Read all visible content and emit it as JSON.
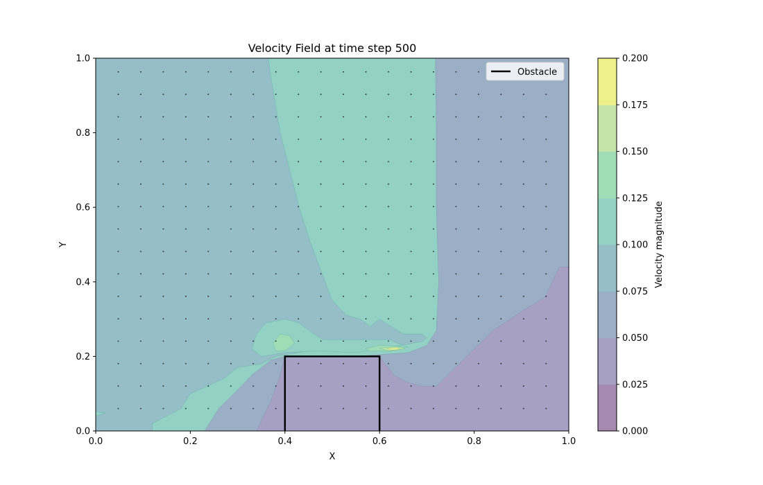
{
  "chart_data": {
    "type": "heatmap",
    "title": "Velocity Field at time step 500",
    "xlabel": "X",
    "ylabel": "Y",
    "xlim": [
      0,
      1
    ],
    "ylim": [
      0,
      1
    ],
    "xticks": [
      "0.0",
      "0.2",
      "0.4",
      "0.6",
      "0.8",
      "1.0"
    ],
    "yticks": [
      "0.0",
      "0.2",
      "0.4",
      "0.6",
      "0.8",
      "1.0"
    ],
    "colorbar": {
      "label": "Velocity magnitude",
      "ticks": [
        "0.000",
        "0.025",
        "0.050",
        "0.075",
        "0.100",
        "0.125",
        "0.150",
        "0.175",
        "0.200"
      ],
      "levels": [
        0.0,
        0.025,
        0.05,
        0.075,
        0.1,
        0.125,
        0.15,
        0.175,
        0.2
      ],
      "colors": [
        "#a689b1",
        "#a5a0c4",
        "#9aafc6",
        "#95bec8",
        "#92d1c4",
        "#a0dcb6",
        "#c3e5a8",
        "#eef08a"
      ]
    },
    "legend": {
      "location": "top-right",
      "entries": [
        {
          "label": "Obstacle",
          "color": "#000000"
        }
      ]
    },
    "obstacle": {
      "x": [
        0.4,
        0.6
      ],
      "y": [
        0.0,
        0.2
      ]
    },
    "regions": [
      {
        "level": 0.075,
        "points": [
          [
            0,
            0
          ],
          [
            0.12,
            0
          ],
          [
            0.12,
            0.02
          ],
          [
            0.18,
            0.06
          ],
          [
            0.2,
            0.1
          ],
          [
            0.27,
            0.14
          ],
          [
            0.3,
            0.17
          ],
          [
            0.35,
            0.18
          ],
          [
            0.38,
            0.2
          ],
          [
            0.45,
            0.215
          ],
          [
            0.55,
            0.218
          ],
          [
            0.63,
            0.226
          ],
          [
            0.69,
            0.24
          ],
          [
            0.7,
            0.25
          ],
          [
            0.69,
            0.26
          ],
          [
            0.65,
            0.26
          ],
          [
            0.6,
            0.3
          ],
          [
            0.58,
            0.28
          ],
          [
            0.56,
            0.3
          ],
          [
            0.53,
            0.31
          ],
          [
            0.5,
            0.35
          ],
          [
            0.47,
            0.45
          ],
          [
            0.45,
            0.52
          ],
          [
            0.43,
            0.6
          ],
          [
            0.41,
            0.7
          ],
          [
            0.39,
            0.8
          ],
          [
            0.37,
            0.95
          ],
          [
            0.365,
            1
          ],
          [
            0,
            1
          ]
        ]
      },
      {
        "level": 0.1,
        "points": [
          [
            0.34,
            0.26
          ],
          [
            0.33,
            0.22
          ],
          [
            0.35,
            0.2
          ],
          [
            0.4,
            0.21
          ],
          [
            0.47,
            0.215
          ],
          [
            0.55,
            0.21
          ],
          [
            0.6,
            0.22
          ],
          [
            0.65,
            0.23
          ],
          [
            0.62,
            0.245
          ],
          [
            0.55,
            0.245
          ],
          [
            0.48,
            0.245
          ],
          [
            0.45,
            0.27
          ],
          [
            0.43,
            0.29
          ],
          [
            0.4,
            0.3
          ],
          [
            0.36,
            0.29
          ]
        ]
      },
      {
        "level": 0.1,
        "points": [
          [
            0,
            0.04
          ],
          [
            0.02,
            0.048
          ],
          [
            0,
            0.052
          ]
        ]
      },
      {
        "level": 0.125,
        "points": [
          [
            0.375,
            0.235
          ],
          [
            0.39,
            0.26
          ],
          [
            0.41,
            0.255
          ],
          [
            0.42,
            0.235
          ],
          [
            0.4,
            0.215
          ],
          [
            0.38,
            0.215
          ]
        ]
      },
      {
        "level": 0.125,
        "points": [
          [
            0.57,
            0.22
          ],
          [
            0.6,
            0.23
          ],
          [
            0.66,
            0.225
          ],
          [
            0.62,
            0.214
          ],
          [
            0.58,
            0.215
          ]
        ]
      },
      {
        "level": 0.15,
        "points": [
          [
            0.6,
            0.222
          ],
          [
            0.635,
            0.226
          ],
          [
            0.655,
            0.22
          ],
          [
            0.62,
            0.215
          ]
        ]
      },
      {
        "level": 0.175,
        "points": [
          [
            0.615,
            0.221
          ],
          [
            0.635,
            0.223
          ],
          [
            0.645,
            0.219
          ],
          [
            0.625,
            0.217
          ]
        ]
      }
    ],
    "low_regions": [
      {
        "level": 0.05,
        "points": [
          [
            0.23,
            0
          ],
          [
            0.26,
            0.06
          ],
          [
            0.3,
            0.11
          ],
          [
            0.33,
            0.15
          ],
          [
            0.37,
            0.19
          ],
          [
            0.4,
            0.2
          ],
          [
            0.55,
            0.2
          ],
          [
            0.6,
            0.205
          ],
          [
            0.66,
            0.21
          ],
          [
            0.7,
            0.23
          ],
          [
            0.72,
            0.27
          ],
          [
            0.725,
            0.4
          ],
          [
            0.72,
            0.6
          ],
          [
            0.72,
            0.8
          ],
          [
            0.718,
            1
          ],
          [
            1,
            1
          ],
          [
            1,
            0
          ]
        ]
      },
      {
        "level": 0.025,
        "points": [
          [
            0.34,
            0
          ],
          [
            0.37,
            0.08
          ],
          [
            0.39,
            0.15
          ],
          [
            0.4,
            0.2
          ],
          [
            0.6,
            0.2
          ],
          [
            0.63,
            0.15
          ],
          [
            0.66,
            0.13
          ],
          [
            0.69,
            0.12
          ],
          [
            0.72,
            0.12
          ],
          [
            0.76,
            0.17
          ],
          [
            0.84,
            0.27
          ],
          [
            0.9,
            0.32
          ],
          [
            0.95,
            0.36
          ],
          [
            0.98,
            0.44
          ],
          [
            1,
            0.44
          ],
          [
            1,
            0
          ]
        ]
      }
    ]
  }
}
